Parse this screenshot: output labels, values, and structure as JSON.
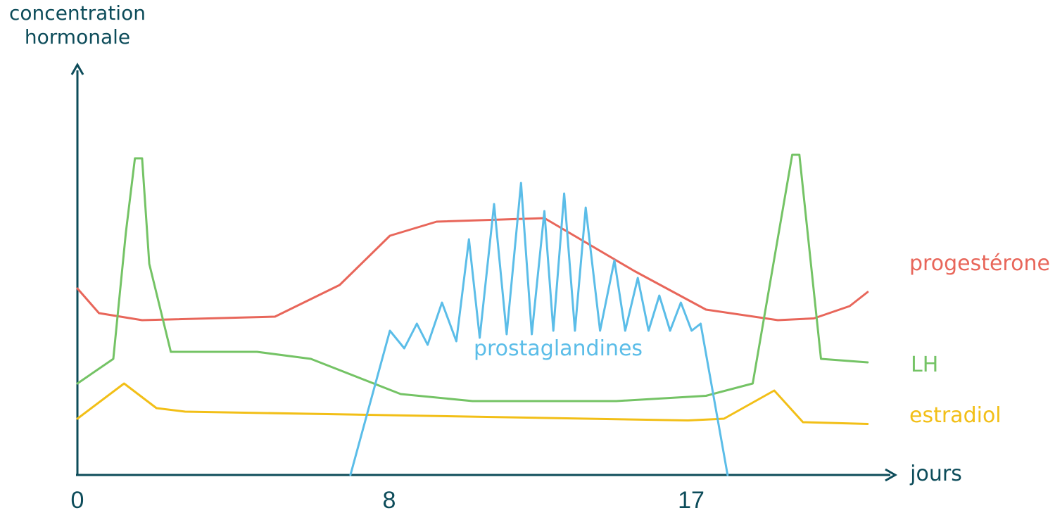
{
  "chart_data": {
    "type": "line",
    "ylabel": [
      "concentration",
      "hormonale"
    ],
    "xlabel": "jours",
    "x_ticks": [
      "0",
      "8",
      "17"
    ],
    "xlim": [
      0,
      26
    ],
    "ylim": [
      0,
      10
    ],
    "series": [
      {
        "name": "progestérone",
        "color": "#e8665a",
        "points": [
          [
            0,
            5.3
          ],
          [
            0.6,
            4.6
          ],
          [
            1.8,
            4.4
          ],
          [
            5.5,
            4.5
          ],
          [
            7.3,
            5.4
          ],
          [
            8.7,
            6.8
          ],
          [
            10,
            7.2
          ],
          [
            13,
            7.3
          ],
          [
            15.5,
            5.8
          ],
          [
            17.5,
            4.7
          ],
          [
            19.5,
            4.4
          ],
          [
            20.5,
            4.45
          ],
          [
            21.5,
            4.8
          ],
          [
            22,
            5.2
          ]
        ]
      },
      {
        "name": "LH",
        "color": "#74c365",
        "points": [
          [
            0,
            2.6
          ],
          [
            1,
            3.3
          ],
          [
            1.35,
            6.9
          ],
          [
            1.6,
            9.0
          ],
          [
            1.8,
            9.0
          ],
          [
            2.0,
            6.0
          ],
          [
            2.6,
            3.5
          ],
          [
            5,
            3.5
          ],
          [
            6.5,
            3.3
          ],
          [
            9,
            2.3
          ],
          [
            11,
            2.1
          ],
          [
            15,
            2.1
          ],
          [
            17.5,
            2.25
          ],
          [
            18.8,
            2.6
          ],
          [
            19.9,
            9.1
          ],
          [
            20.1,
            9.1
          ],
          [
            20.7,
            3.3
          ],
          [
            22,
            3.2
          ]
        ]
      },
      {
        "name": "estradiol",
        "color": "#f2bf17",
        "points": [
          [
            0,
            1.6
          ],
          [
            1.3,
            2.6
          ],
          [
            2.2,
            1.9
          ],
          [
            3,
            1.8
          ],
          [
            17,
            1.55
          ],
          [
            18,
            1.6
          ],
          [
            19.4,
            2.4
          ],
          [
            20.2,
            1.5
          ],
          [
            22,
            1.45
          ]
        ]
      },
      {
        "name": "prostaglandines",
        "color": "#5bbde8",
        "points": [
          [
            7.6,
            0
          ],
          [
            8.7,
            4.1
          ],
          [
            9.1,
            3.6
          ],
          [
            9.45,
            4.3
          ],
          [
            9.75,
            3.7
          ],
          [
            10.15,
            4.9
          ],
          [
            10.55,
            3.8
          ],
          [
            10.9,
            6.7
          ],
          [
            11.2,
            3.9
          ],
          [
            11.6,
            7.7
          ],
          [
            11.95,
            4.0
          ],
          [
            12.35,
            8.3
          ],
          [
            12.65,
            4.0
          ],
          [
            13,
            7.5
          ],
          [
            13.25,
            4.1
          ],
          [
            13.55,
            8.0
          ],
          [
            13.85,
            4.1
          ],
          [
            14.15,
            7.6
          ],
          [
            14.55,
            4.1
          ],
          [
            14.95,
            6.1
          ],
          [
            15.25,
            4.1
          ],
          [
            15.6,
            5.6
          ],
          [
            15.9,
            4.1
          ],
          [
            16.2,
            5.1
          ],
          [
            16.5,
            4.1
          ],
          [
            16.8,
            4.9
          ],
          [
            17.1,
            4.1
          ],
          [
            17.35,
            4.3
          ],
          [
            18.1,
            0
          ]
        ]
      }
    ],
    "labels": {
      "progesterone": "progestérone",
      "lh": "LH",
      "estradiol": "estradiol",
      "prostaglandines": "prostaglandines"
    },
    "axis_color": "#0d4c5a",
    "grid": false
  }
}
